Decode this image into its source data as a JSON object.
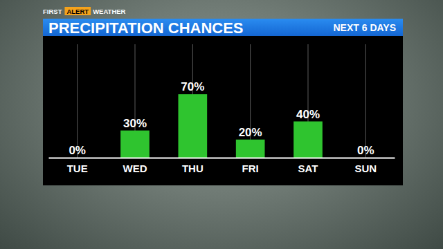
{
  "chart_data": {
    "type": "bar",
    "title": "PRECIPITATION CHANCES",
    "subtitle": "NEXT 6 DAYS",
    "annotations": [
      "FIRST",
      "ALERT",
      "WEATHER"
    ],
    "categories": [
      "TUE",
      "WED",
      "THU",
      "FRI",
      "SAT",
      "SUN"
    ],
    "values": [
      0,
      30,
      70,
      20,
      40,
      0
    ],
    "value_labels": [
      "0%",
      "30%",
      "70%",
      "20%",
      "40%",
      "0%"
    ],
    "color": "#2fc42f",
    "ylim": [
      0,
      125
    ],
    "grid": true,
    "data_labels": true,
    "tick_labels": "x"
  }
}
